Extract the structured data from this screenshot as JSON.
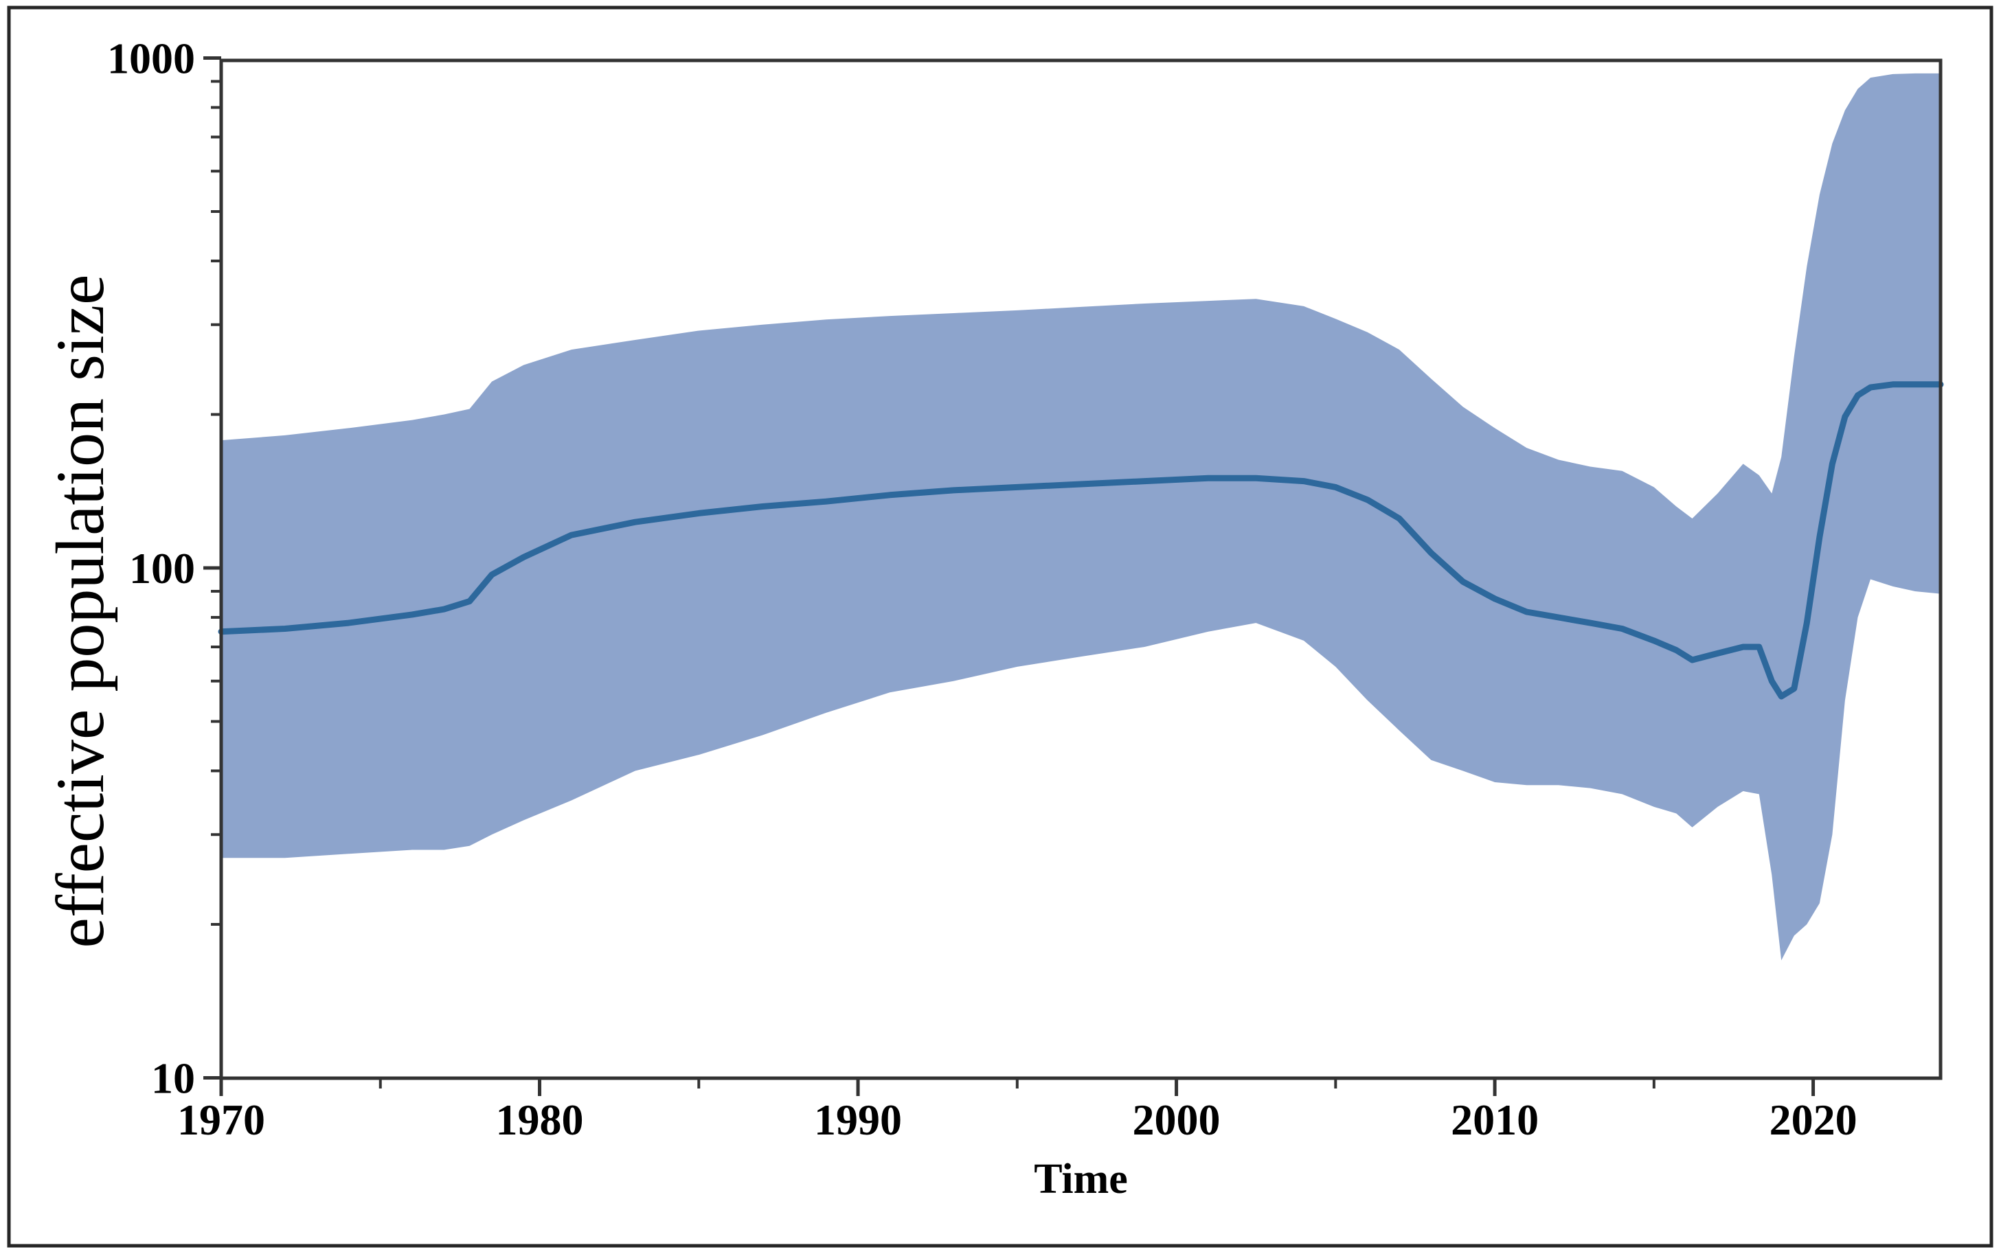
{
  "figure": {
    "description": "Bayesian skyline plot of effective population size through time with median line and credible-interval band",
    "background_color": "#ffffff",
    "border_color": "#262626"
  },
  "chart_data": {
    "type": "area",
    "subtype": "skyline-band-with-median-line",
    "title": "",
    "xlabel": "Time",
    "ylabel": "effective population size",
    "x_scale": "linear",
    "y_scale": "log10",
    "xlim": [
      1970,
      2024
    ],
    "ylim": [
      10,
      1000
    ],
    "grid": false,
    "legend": false,
    "x_ticks": [
      1970,
      1980,
      1990,
      2000,
      2010,
      2020
    ],
    "x_tick_labels": [
      "1970",
      "1980",
      "1990",
      "2000",
      "2010",
      "2020"
    ],
    "x_minor_ticks": [
      1975,
      1985,
      1995,
      2005,
      2015
    ],
    "y_ticks": [
      10,
      100,
      1000
    ],
    "y_tick_labels": [
      "10",
      "100",
      "1000"
    ],
    "y_minor_ticks": [
      20,
      30,
      40,
      50,
      60,
      70,
      80,
      90,
      200,
      300,
      400,
      500,
      600,
      700,
      800,
      900
    ],
    "colors": {
      "band": "#8da4cc",
      "line": "#2d689c",
      "axis": "#333333",
      "text": "#000000",
      "border": "#262626",
      "background": "#ffffff"
    },
    "series_names": [
      "median estimate",
      "credible interval (band)"
    ],
    "series": {
      "x": [
        1970,
        1972,
        1974,
        1976,
        1977,
        1977.8,
        1978.5,
        1979.5,
        1981,
        1983,
        1985,
        1987,
        1989,
        1991,
        1993,
        1995,
        1997,
        1999,
        2001,
        2002.5,
        2004,
        2005,
        2006,
        2007,
        2008,
        2009,
        2010,
        2011,
        2012,
        2013,
        2014,
        2015,
        2015.7,
        2016.2,
        2017,
        2017.8,
        2018.3,
        2018.7,
        2019,
        2019.4,
        2019.8,
        2020.2,
        2020.6,
        2021,
        2021.4,
        2021.8,
        2022.5,
        2023.2,
        2024
      ],
      "median": [
        75,
        76,
        78,
        81,
        83,
        86,
        97,
        105,
        116,
        123,
        128,
        132,
        135,
        139,
        142,
        144,
        146,
        148,
        150,
        150,
        148,
        144,
        136,
        125,
        107,
        94,
        87,
        82,
        80,
        78,
        76,
        72,
        69,
        66,
        68,
        70,
        70,
        60,
        56,
        58,
        78,
        115,
        160,
        198,
        218,
        226,
        229,
        229,
        229
      ],
      "lower": [
        27,
        27,
        27.5,
        28,
        28,
        28.5,
        30,
        32,
        35,
        40,
        43,
        47,
        52,
        57,
        60,
        64,
        67,
        70,
        75,
        78,
        72,
        64,
        55,
        48,
        42,
        40,
        38,
        37.5,
        37.5,
        37,
        36,
        34,
        33,
        31,
        34,
        36.5,
        36,
        25,
        17,
        19,
        20,
        22,
        30,
        55,
        80,
        95,
        92,
        90,
        89
      ],
      "upper": [
        178,
        182,
        188,
        195,
        200,
        205,
        232,
        250,
        268,
        280,
        292,
        300,
        307,
        312,
        316,
        320,
        325,
        330,
        334,
        337,
        326,
        308,
        290,
        268,
        235,
        207,
        188,
        172,
        163,
        158,
        155,
        144,
        132,
        125,
        140,
        160,
        152,
        140,
        165,
        260,
        390,
        540,
        680,
        790,
        870,
        915,
        930,
        933,
        933
      ]
    }
  }
}
